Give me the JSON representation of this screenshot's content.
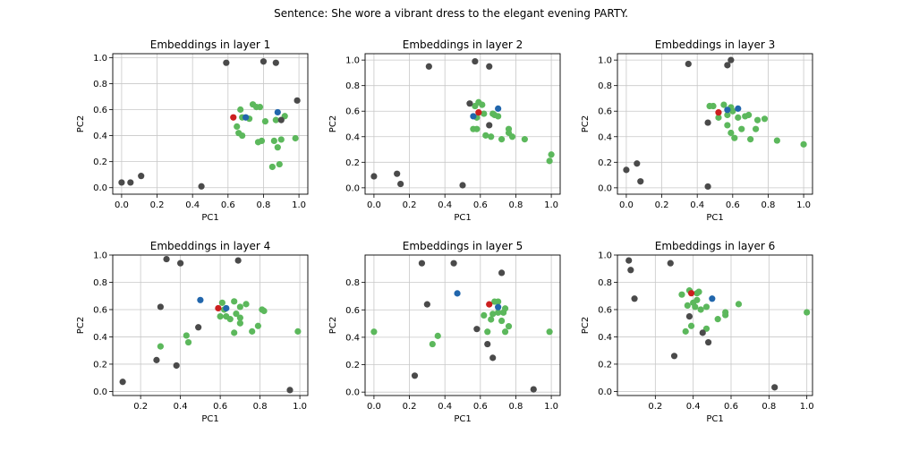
{
  "suptitle": "Sentence: She wore a vibrant dress to the elegant evening PARTY.",
  "colors": {
    "other": "#4a4a4a",
    "context": "#5cb85c",
    "blue": "#2166ac",
    "red": "#cc1f1f",
    "grid": "#c8c8c8"
  },
  "legend_semantics": {
    "other": "gray points",
    "context": "green points",
    "blue": "blue point",
    "red": "red point"
  },
  "chart_data": [
    {
      "type": "scatter",
      "title": "Embeddings in layer 1",
      "xlabel": "PC1",
      "ylabel": "PC2",
      "xlim": [
        -0.05,
        1.05
      ],
      "ylim": [
        -0.05,
        1.03
      ],
      "xticks": [
        0.0,
        0.2,
        0.4,
        0.6,
        0.8,
        1.0
      ],
      "yticks": [
        0.0,
        0.2,
        0.4,
        0.6,
        0.8,
        1.0
      ],
      "grid": true,
      "series": [
        {
          "group": "other",
          "points": [
            [
              0.0,
              0.04
            ],
            [
              0.05,
              0.04
            ],
            [
              0.11,
              0.09
            ],
            [
              0.45,
              0.01
            ],
            [
              0.59,
              0.96
            ],
            [
              0.8,
              0.97
            ],
            [
              0.87,
              0.96
            ],
            [
              0.9,
              0.52
            ],
            [
              0.99,
              0.67
            ]
          ]
        },
        {
          "group": "context",
          "points": [
            [
              0.65,
              0.47
            ],
            [
              0.66,
              0.42
            ],
            [
              0.67,
              0.6
            ],
            [
              0.68,
              0.54
            ],
            [
              0.68,
              0.4
            ],
            [
              0.72,
              0.53
            ],
            [
              0.74,
              0.64
            ],
            [
              0.76,
              0.62
            ],
            [
              0.78,
              0.62
            ],
            [
              0.77,
              0.35
            ],
            [
              0.79,
              0.36
            ],
            [
              0.81,
              0.51
            ],
            [
              0.85,
              0.16
            ],
            [
              0.86,
              0.36
            ],
            [
              0.87,
              0.52
            ],
            [
              0.88,
              0.31
            ],
            [
              0.89,
              0.18
            ],
            [
              0.9,
              0.37
            ],
            [
              0.92,
              0.55
            ],
            [
              0.98,
              0.38
            ]
          ]
        },
        {
          "group": "blue",
          "points": [
            [
              0.7,
              0.54
            ],
            [
              0.88,
              0.58
            ]
          ]
        },
        {
          "group": "red",
          "points": [
            [
              0.63,
              0.54
            ]
          ]
        }
      ]
    },
    {
      "type": "scatter",
      "title": "Embeddings in layer 2",
      "xlabel": "PC1",
      "ylabel": "PC2",
      "xlim": [
        -0.05,
        1.05
      ],
      "ylim": [
        -0.05,
        1.05
      ],
      "xticks": [
        0.0,
        0.2,
        0.4,
        0.6,
        0.8,
        1.0
      ],
      "yticks": [
        0.0,
        0.2,
        0.4,
        0.6,
        0.8,
        1.0
      ],
      "grid": true,
      "series": [
        {
          "group": "other",
          "points": [
            [
              0.0,
              0.09
            ],
            [
              0.13,
              0.11
            ],
            [
              0.15,
              0.03
            ],
            [
              0.31,
              0.95
            ],
            [
              0.5,
              0.02
            ],
            [
              0.54,
              0.66
            ],
            [
              0.57,
              0.99
            ],
            [
              0.65,
              0.95
            ],
            [
              0.65,
              0.49
            ]
          ]
        },
        {
          "group": "context",
          "points": [
            [
              0.56,
              0.46
            ],
            [
              0.57,
              0.64
            ],
            [
              0.58,
              0.55
            ],
            [
              0.58,
              0.46
            ],
            [
              0.59,
              0.67
            ],
            [
              0.61,
              0.65
            ],
            [
              0.62,
              0.58
            ],
            [
              0.63,
              0.41
            ],
            [
              0.66,
              0.4
            ],
            [
              0.67,
              0.58
            ],
            [
              0.68,
              0.57
            ],
            [
              0.7,
              0.56
            ],
            [
              0.72,
              0.38
            ],
            [
              0.76,
              0.46
            ],
            [
              0.76,
              0.43
            ],
            [
              0.78,
              0.4
            ],
            [
              0.85,
              0.38
            ],
            [
              0.99,
              0.21
            ],
            [
              1.0,
              0.26
            ]
          ]
        },
        {
          "group": "blue",
          "points": [
            [
              0.56,
              0.56
            ],
            [
              0.7,
              0.62
            ]
          ]
        },
        {
          "group": "red",
          "points": [
            [
              0.59,
              0.59
            ]
          ]
        }
      ]
    },
    {
      "type": "scatter",
      "title": "Embeddings in layer 3",
      "xlabel": "PC1",
      "ylabel": "PC2",
      "xlim": [
        -0.05,
        1.05
      ],
      "ylim": [
        -0.05,
        1.05
      ],
      "xticks": [
        0.0,
        0.2,
        0.4,
        0.6,
        0.8,
        1.0
      ],
      "yticks": [
        0.0,
        0.2,
        0.4,
        0.6,
        0.8,
        1.0
      ],
      "grid": true,
      "series": [
        {
          "group": "other",
          "points": [
            [
              0.0,
              0.14
            ],
            [
              0.06,
              0.19
            ],
            [
              0.08,
              0.05
            ],
            [
              0.35,
              0.97
            ],
            [
              0.46,
              0.51
            ],
            [
              0.46,
              0.01
            ],
            [
              0.57,
              0.96
            ],
            [
              0.59,
              1.0
            ]
          ]
        },
        {
          "group": "context",
          "points": [
            [
              0.47,
              0.64
            ],
            [
              0.49,
              0.64
            ],
            [
              0.52,
              0.55
            ],
            [
              0.55,
              0.65
            ],
            [
              0.57,
              0.57
            ],
            [
              0.57,
              0.49
            ],
            [
              0.59,
              0.43
            ],
            [
              0.59,
              0.63
            ],
            [
              0.6,
              0.6
            ],
            [
              0.61,
              0.39
            ],
            [
              0.63,
              0.55
            ],
            [
              0.65,
              0.46
            ],
            [
              0.67,
              0.56
            ],
            [
              0.69,
              0.57
            ],
            [
              0.7,
              0.38
            ],
            [
              0.73,
              0.46
            ],
            [
              0.74,
              0.53
            ],
            [
              0.78,
              0.54
            ],
            [
              0.85,
              0.37
            ],
            [
              1.0,
              0.34
            ]
          ]
        },
        {
          "group": "blue",
          "points": [
            [
              0.57,
              0.61
            ],
            [
              0.63,
              0.62
            ]
          ]
        },
        {
          "group": "red",
          "points": [
            [
              0.52,
              0.59
            ]
          ]
        }
      ]
    },
    {
      "type": "scatter",
      "title": "Embeddings in layer 4",
      "xlabel": "PC1",
      "ylabel": "PC2",
      "xlim": [
        0.06,
        1.04
      ],
      "ylim": [
        -0.03,
        1.0
      ],
      "xticks": [
        0.2,
        0.4,
        0.6,
        0.8,
        1.0
      ],
      "yticks": [
        0.0,
        0.2,
        0.4,
        0.6,
        0.8,
        1.0
      ],
      "grid": true,
      "series": [
        {
          "group": "other",
          "points": [
            [
              0.11,
              0.07
            ],
            [
              0.28,
              0.23
            ],
            [
              0.3,
              0.62
            ],
            [
              0.33,
              0.97
            ],
            [
              0.38,
              0.19
            ],
            [
              0.4,
              0.94
            ],
            [
              0.49,
              0.47
            ],
            [
              0.69,
              0.96
            ],
            [
              0.95,
              0.01
            ]
          ]
        },
        {
          "group": "context",
          "points": [
            [
              0.3,
              0.33
            ],
            [
              0.43,
              0.41
            ],
            [
              0.44,
              0.36
            ],
            [
              0.6,
              0.55
            ],
            [
              0.61,
              0.65
            ],
            [
              0.62,
              0.6
            ],
            [
              0.63,
              0.55
            ],
            [
              0.65,
              0.53
            ],
            [
              0.67,
              0.66
            ],
            [
              0.67,
              0.43
            ],
            [
              0.68,
              0.57
            ],
            [
              0.7,
              0.54
            ],
            [
              0.7,
              0.5
            ],
            [
              0.7,
              0.62
            ],
            [
              0.73,
              0.64
            ],
            [
              0.76,
              0.44
            ],
            [
              0.79,
              0.48
            ],
            [
              0.81,
              0.6
            ],
            [
              0.82,
              0.59
            ],
            [
              0.99,
              0.44
            ]
          ]
        },
        {
          "group": "blue",
          "points": [
            [
              0.5,
              0.67
            ],
            [
              0.63,
              0.61
            ]
          ]
        },
        {
          "group": "red",
          "points": [
            [
              0.59,
              0.61
            ]
          ]
        }
      ]
    },
    {
      "type": "scatter",
      "title": "Embeddings in layer 5",
      "xlabel": "PC1",
      "ylabel": "PC2",
      "xlim": [
        -0.05,
        1.05
      ],
      "ylim": [
        -0.025,
        1.0
      ],
      "xticks": [
        0.0,
        0.2,
        0.4,
        0.6,
        0.8,
        1.0
      ],
      "yticks": [
        0.0,
        0.2,
        0.4,
        0.6,
        0.8
      ],
      "grid": true,
      "series": [
        {
          "group": "other",
          "points": [
            [
              0.23,
              0.12
            ],
            [
              0.27,
              0.94
            ],
            [
              0.3,
              0.64
            ],
            [
              0.45,
              0.94
            ],
            [
              0.58,
              0.46
            ],
            [
              0.64,
              0.35
            ],
            [
              0.67,
              0.25
            ],
            [
              0.72,
              0.87
            ],
            [
              0.9,
              0.02
            ]
          ]
        },
        {
          "group": "context",
          "points": [
            [
              0.0,
              0.44
            ],
            [
              0.33,
              0.35
            ],
            [
              0.36,
              0.41
            ],
            [
              0.62,
              0.56
            ],
            [
              0.64,
              0.44
            ],
            [
              0.66,
              0.53
            ],
            [
              0.67,
              0.57
            ],
            [
              0.68,
              0.66
            ],
            [
              0.7,
              0.66
            ],
            [
              0.7,
              0.58
            ],
            [
              0.72,
              0.52
            ],
            [
              0.73,
              0.58
            ],
            [
              0.74,
              0.61
            ],
            [
              0.74,
              0.44
            ],
            [
              0.76,
              0.48
            ],
            [
              0.99,
              0.44
            ]
          ]
        },
        {
          "group": "blue",
          "points": [
            [
              0.47,
              0.72
            ],
            [
              0.7,
              0.62
            ]
          ]
        },
        {
          "group": "red",
          "points": [
            [
              0.65,
              0.64
            ]
          ]
        }
      ]
    },
    {
      "type": "scatter",
      "title": "Embeddings in layer 6",
      "xlabel": "PC1",
      "ylabel": "PC2",
      "xlim": [
        0.0,
        1.03
      ],
      "ylim": [
        -0.03,
        1.0
      ],
      "xticks": [
        0.2,
        0.4,
        0.6,
        0.8,
        1.0
      ],
      "yticks": [
        0.0,
        0.2,
        0.4,
        0.6,
        0.8,
        1.0
      ],
      "grid": true,
      "series": [
        {
          "group": "other",
          "points": [
            [
              0.06,
              0.96
            ],
            [
              0.07,
              0.89
            ],
            [
              0.09,
              0.68
            ],
            [
              0.28,
              0.94
            ],
            [
              0.3,
              0.26
            ],
            [
              0.38,
              0.55
            ],
            [
              0.45,
              0.43
            ],
            [
              0.48,
              0.36
            ],
            [
              0.83,
              0.03
            ]
          ]
        },
        {
          "group": "context",
          "points": [
            [
              0.34,
              0.71
            ],
            [
              0.36,
              0.44
            ],
            [
              0.37,
              0.63
            ],
            [
              0.38,
              0.74
            ],
            [
              0.39,
              0.48
            ],
            [
              0.4,
              0.65
            ],
            [
              0.41,
              0.62
            ],
            [
              0.42,
              0.72
            ],
            [
              0.42,
              0.67
            ],
            [
              0.43,
              0.73
            ],
            [
              0.44,
              0.6
            ],
            [
              0.47,
              0.62
            ],
            [
              0.47,
              0.46
            ],
            [
              0.53,
              0.53
            ],
            [
              0.57,
              0.56
            ],
            [
              0.57,
              0.58
            ],
            [
              0.64,
              0.64
            ],
            [
              1.0,
              0.58
            ]
          ]
        },
        {
          "group": "blue",
          "points": [
            [
              0.5,
              0.68
            ]
          ]
        },
        {
          "group": "red",
          "points": [
            [
              0.39,
              0.72
            ]
          ]
        }
      ]
    }
  ]
}
